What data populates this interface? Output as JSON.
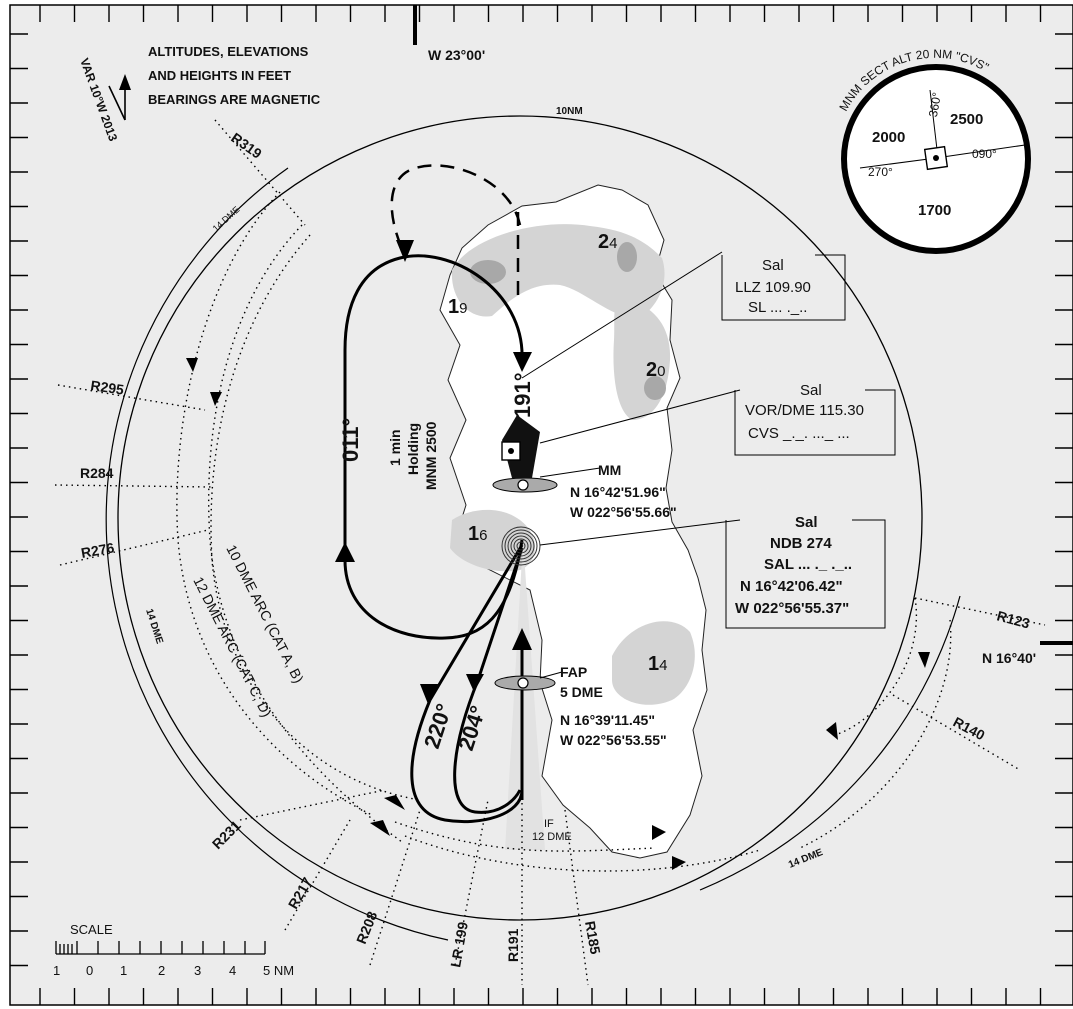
{
  "notes": {
    "line1": "ALTITUDES, ELEVATIONS",
    "line2": "AND HEIGHTS IN FEET",
    "line3": "BEARINGS ARE MAGNETIC"
  },
  "variation": "VAR 10°W 2013",
  "meridian_label": "W 23°00'",
  "parallel_label": "N 16°40'",
  "ring_10nm": "10NM",
  "msa": {
    "title": "MNM SECT ALT 20 NM \"CVS\"",
    "nw_alt": "2000",
    "ne_alt": "2500",
    "s_alt": "1700",
    "brg_360": "360°",
    "brg_270": "270°",
    "brg_090": "090°"
  },
  "terrain": {
    "h19": "1",
    "h19s": "9",
    "h24": "2",
    "h24s": "4",
    "h20": "2",
    "h20s": "0",
    "h16": "1",
    "h16s": "6",
    "h14": "1",
    "h14s": "4"
  },
  "llz": {
    "name": "Sal",
    "freq": "LLZ 109.90",
    "ident": "SL ... ._.."
  },
  "vor": {
    "name": "Sal",
    "freq": "VOR/DME 115.30",
    "ident": "CVS _._. ..._ ..."
  },
  "ndb": {
    "name": "Sal",
    "freq": "NDB 274",
    "ident": "SAL ... ._ ._..",
    "lat": "N 16°42'06.42\"",
    "lon": "W 022°56'55.37\""
  },
  "mm": {
    "name": "MM",
    "lat": "N 16°42'51.96\"",
    "lon": "W 022°56'55.66\""
  },
  "fap": {
    "name": "FAP",
    "dist": "5 DME",
    "lat": "N 16°39'11.45\"",
    "lon": "W 022°56'53.55\""
  },
  "if_fix": {
    "name": "IF",
    "dist": "12 DME"
  },
  "holding": {
    "time": "1 min",
    "label": "Holding",
    "alt": "MNM 2500"
  },
  "courses": {
    "inbound": "191°",
    "outbound": "011°",
    "c220": "220°",
    "c204": "204°"
  },
  "radials": {
    "r319": "R319",
    "r295": "R295",
    "r284": "R284",
    "r276": "R276",
    "r231": "R231",
    "r217": "R217",
    "r208": "R208",
    "r191": "R191",
    "r185": "R185",
    "r123": "R123",
    "r140": "R140",
    "lr199": "LR 199"
  },
  "arcs": {
    "dme14_nw": "14 DME",
    "dme14_w": "14 DME",
    "dme14_se": "14 DME",
    "arc10": "10 DME ARC (CAT A, B)",
    "arc12": "12 DME ARC (CAT C, D)"
  },
  "scale": {
    "title": "SCALE",
    "n1": "1",
    "n0": "0",
    "p1": "1",
    "p2": "2",
    "p3": "3",
    "p4": "4",
    "p5": "5 NM"
  }
}
